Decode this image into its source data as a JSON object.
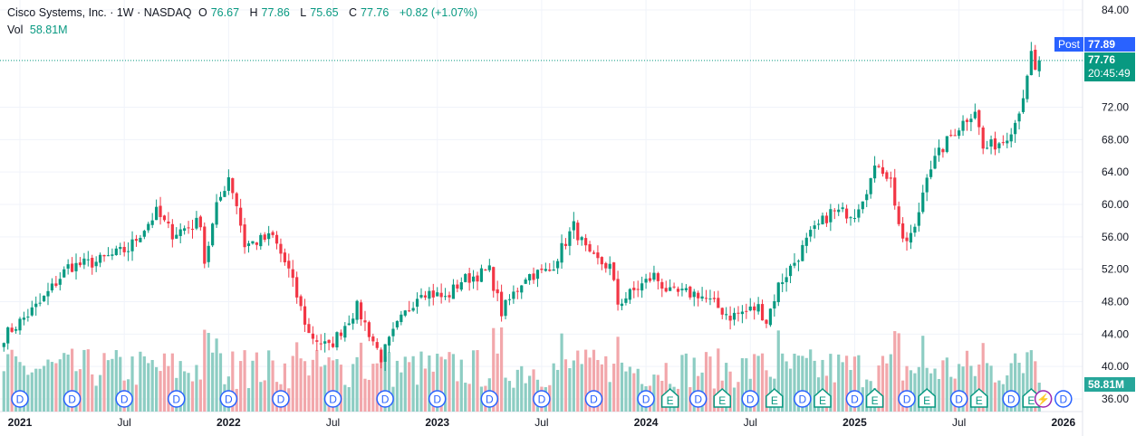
{
  "legend": {
    "title": "Cisco Systems, Inc. · 1W · NASDAQ",
    "o_label": "O",
    "open": "76.67",
    "h_label": "H",
    "high": "77.86",
    "l_label": "L",
    "low": "75.65",
    "c_label": "C",
    "close": "77.76",
    "change": "+0.82 (+1.07%)",
    "vol_label": "Vol",
    "volume": "58.81M"
  },
  "price_tags": {
    "post_label": "Post",
    "post_price": "77.89",
    "last_price": "77.76",
    "countdown": "20:45:49",
    "volume_tag": "58.81M"
  },
  "colors": {
    "up": "#089981",
    "down": "#f23645",
    "vol_up": "#8dcdc3",
    "vol_down": "#f2a7ab",
    "post": "#2962ff",
    "dividend": "#2962ff",
    "earnings": "#089981",
    "split": "#9c27b0"
  },
  "chart_data": {
    "type": "candlestick",
    "ylim": [
      36,
      84
    ],
    "y_ticks": [
      "84.00",
      "72.00",
      "68.00",
      "64.00",
      "60.00",
      "56.00",
      "52.00",
      "48.00",
      "44.00",
      "40.00",
      "36.00"
    ],
    "x_ticks": [
      {
        "label": "2021",
        "week": 0
      },
      {
        "label": "Jul",
        "week": 26
      },
      {
        "label": "2022",
        "week": 52
      },
      {
        "label": "Jul",
        "week": 78
      },
      {
        "label": "2023",
        "week": 104
      },
      {
        "label": "Jul",
        "week": 130
      },
      {
        "label": "2024",
        "week": 156
      },
      {
        "label": "Jul",
        "week": 182
      },
      {
        "label": "2025",
        "week": 208
      },
      {
        "label": "Jul",
        "week": 234
      },
      {
        "label": "2026",
        "week": 260
      }
    ],
    "close_anchors_week_price": [
      [
        -4,
        43.7
      ],
      [
        5,
        47.8
      ],
      [
        12,
        52.3
      ],
      [
        19,
        52.9
      ],
      [
        27,
        54.5
      ],
      [
        34,
        59
      ],
      [
        38,
        56.4
      ],
      [
        45,
        57.9
      ],
      [
        46,
        52.9
      ],
      [
        49,
        59.6
      ],
      [
        52,
        63.5
      ],
      [
        54,
        60
      ],
      [
        56,
        55
      ],
      [
        63,
        56
      ],
      [
        67,
        51.8
      ],
      [
        72,
        44
      ],
      [
        77,
        42.3
      ],
      [
        84,
        47.3
      ],
      [
        90,
        41.1
      ],
      [
        94,
        45
      ],
      [
        100,
        49.5
      ],
      [
        106,
        48.4
      ],
      [
        110,
        50.6
      ],
      [
        117,
        51.8
      ],
      [
        120,
        46.7
      ],
      [
        126,
        51.2
      ],
      [
        132,
        51.8
      ],
      [
        138,
        57.3
      ],
      [
        142,
        53.4
      ],
      [
        147,
        52.3
      ],
      [
        149,
        47.8
      ],
      [
        158,
        51.2
      ],
      [
        162,
        49
      ],
      [
        169,
        49
      ],
      [
        177,
        46.2
      ],
      [
        184,
        47.3
      ],
      [
        186,
        45.6
      ],
      [
        189,
        50
      ],
      [
        193,
        52.9
      ],
      [
        197,
        56.2
      ],
      [
        202,
        59
      ],
      [
        208,
        59
      ],
      [
        214,
        65.1
      ],
      [
        217,
        62.9
      ],
      [
        220,
        55
      ],
      [
        223,
        56.8
      ],
      [
        226,
        64
      ],
      [
        232,
        68.5
      ],
      [
        238,
        71.8
      ],
      [
        240,
        66.8
      ],
      [
        245,
        67.9
      ],
      [
        248,
        70.2
      ],
      [
        251,
        75.2
      ],
      [
        252,
        78.5
      ],
      [
        253,
        76.2
      ],
      [
        254,
        77.76
      ]
    ],
    "dividend_weeks": [
      0,
      13,
      26,
      39,
      52,
      65,
      78,
      91,
      104,
      117,
      130,
      143,
      156,
      169,
      182,
      195,
      208,
      221,
      234,
      247,
      260
    ],
    "earnings_weeks": [
      162,
      175,
      188,
      200,
      213,
      226,
      239,
      252
    ],
    "split_weeks": [
      255
    ]
  }
}
